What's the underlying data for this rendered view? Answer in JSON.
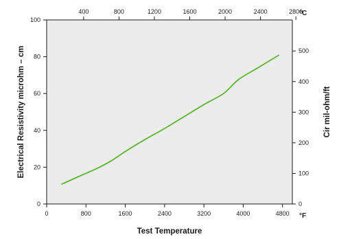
{
  "chart_data": {
    "type": "line",
    "xlabel": "Test Temperature",
    "ylabel_left": "Electrical Resistivity microhm – cm",
    "ylabel_right": "Cir mil-ohm/ft",
    "x_bottom": {
      "unit": "°F",
      "range": [
        0,
        5000
      ],
      "ticks": [
        0,
        800,
        1600,
        2400,
        3200,
        4000,
        4800
      ]
    },
    "x_top": {
      "unit": "°C",
      "range": [
        -17.8,
        2760
      ],
      "ticks": [
        400,
        800,
        1200,
        1600,
        2000,
        2400,
        2800
      ]
    },
    "y_left": {
      "range": [
        0,
        100
      ],
      "ticks": [
        0,
        20,
        40,
        60,
        80,
        100
      ]
    },
    "y_right": {
      "range": [
        0,
        601.5
      ],
      "ticks": [
        0,
        100,
        200,
        300,
        400,
        500
      ]
    },
    "series": [
      {
        "color": "#5cb531",
        "points": [
          [
            310,
            10.8
          ],
          [
            700,
            15.5
          ],
          [
            1000,
            19.0
          ],
          [
            1300,
            23.2
          ],
          [
            1600,
            28.5
          ],
          [
            2000,
            35.0
          ],
          [
            2400,
            41.0
          ],
          [
            2800,
            47.5
          ],
          [
            3200,
            54.0
          ],
          [
            3600,
            60.0
          ],
          [
            3900,
            67.5
          ],
          [
            4300,
            74.0
          ],
          [
            4720,
            80.8
          ]
        ]
      }
    ],
    "grid": false,
    "legend": "none",
    "background": "#ececec"
  }
}
